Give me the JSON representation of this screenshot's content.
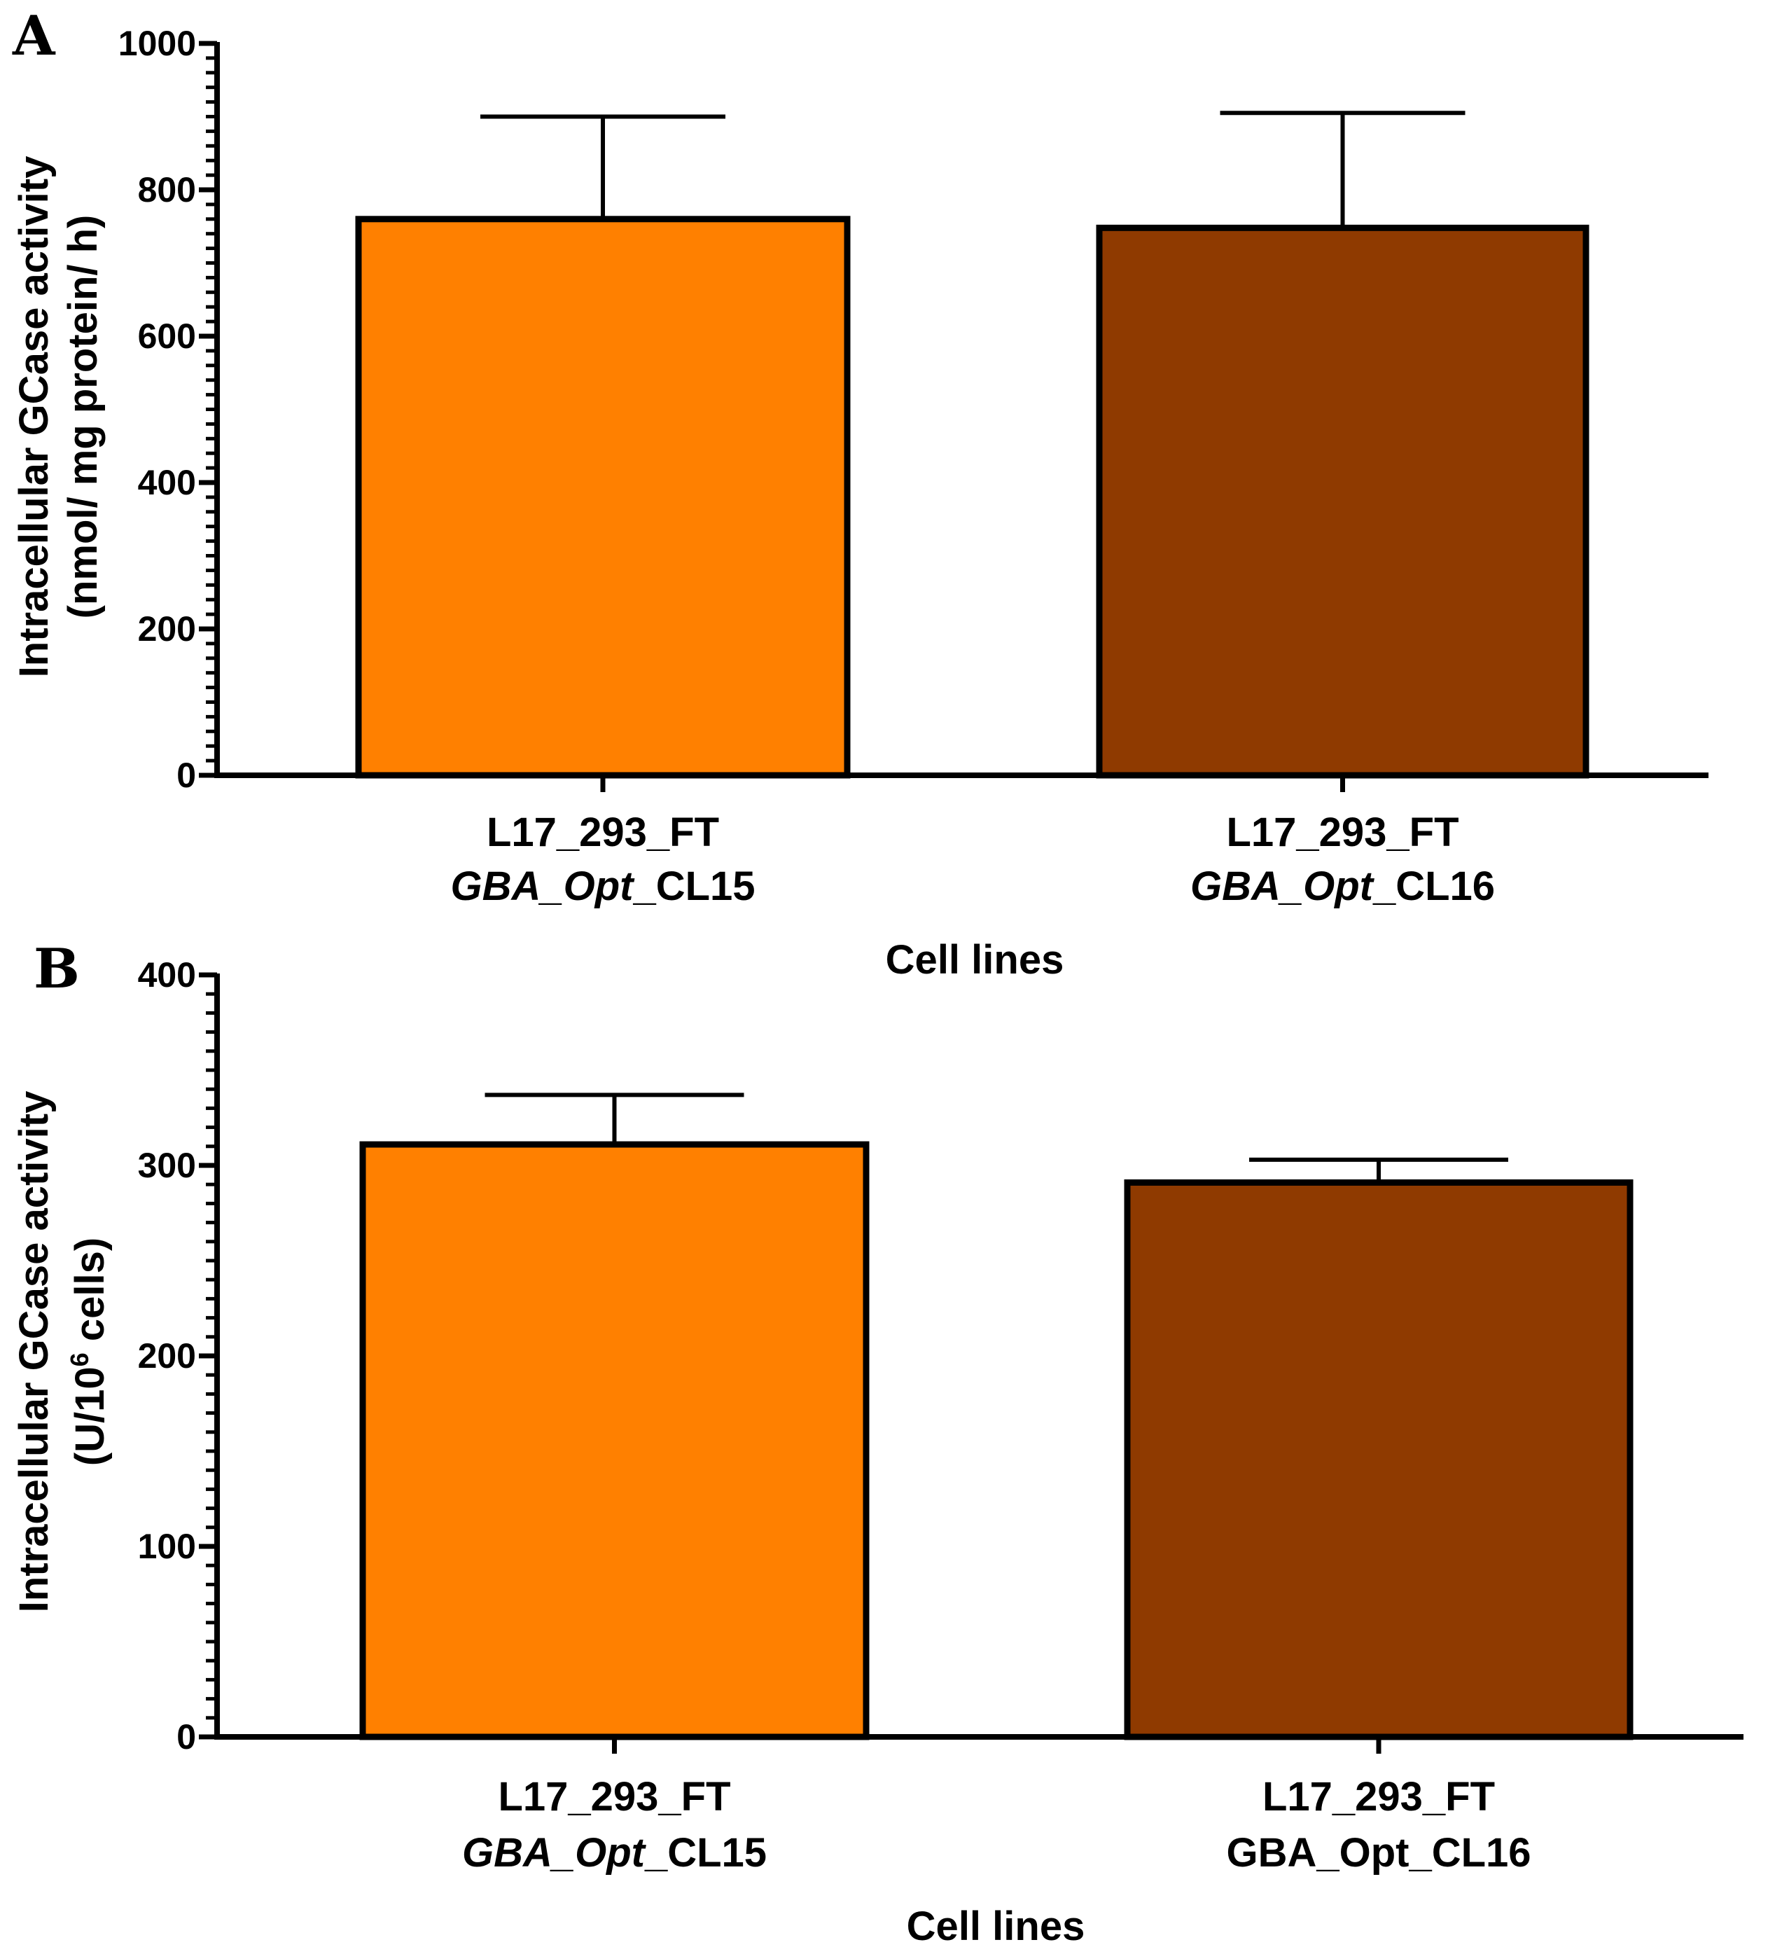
{
  "colors": {
    "orange": "#FF8000",
    "brown": "#8F3A00",
    "outline": "#000000"
  },
  "chart_data": [
    {
      "type": "bar",
      "panel": "A",
      "categories": [
        {
          "line1": "L17_293_FT",
          "line2_italic": "GBA_Opt",
          "line2_rest": "_CL15"
        },
        {
          "line1": "L17_293_FT",
          "line2_italic": "GBA_Opt",
          "line2_rest": "_CL16"
        }
      ],
      "values": [
        760,
        748
      ],
      "errors": [
        140,
        157
      ],
      "bar_colors": [
        "orange",
        "brown"
      ],
      "ylabel": {
        "line1": "Intracellular GCase activity",
        "line2": "(nmol/ mg protein/ h)"
      },
      "xlabel": "Cell lines",
      "ylim": [
        0,
        1000
      ],
      "yticks": [
        "0",
        "200",
        "400",
        "600",
        "800",
        "1000"
      ],
      "minor_ticks_per_major": 9,
      "grid": false,
      "legend": "none"
    },
    {
      "type": "bar",
      "panel": "B",
      "categories": [
        {
          "line1": "L17_293_FT",
          "line2_italic": "GBA_Opt",
          "line2_rest": "_CL15"
        },
        {
          "line1": "L17_293_FT",
          "line2_italic": "",
          "line2_rest": "GBA_Opt_CL16"
        }
      ],
      "values": [
        311,
        291
      ],
      "errors": [
        26,
        12
      ],
      "bar_colors": [
        "orange",
        "brown"
      ],
      "ylabel": {
        "line1": "Intracellular GCase activity",
        "line2_pre": "(U/10",
        "line2_sup": "6",
        "line2_post": " cells)"
      },
      "xlabel": "Cell lines",
      "ylim": [
        0,
        400
      ],
      "yticks": [
        "0",
        "100",
        "200",
        "300",
        "400"
      ],
      "minor_ticks_per_major": 9,
      "grid": false,
      "legend": "none"
    }
  ]
}
